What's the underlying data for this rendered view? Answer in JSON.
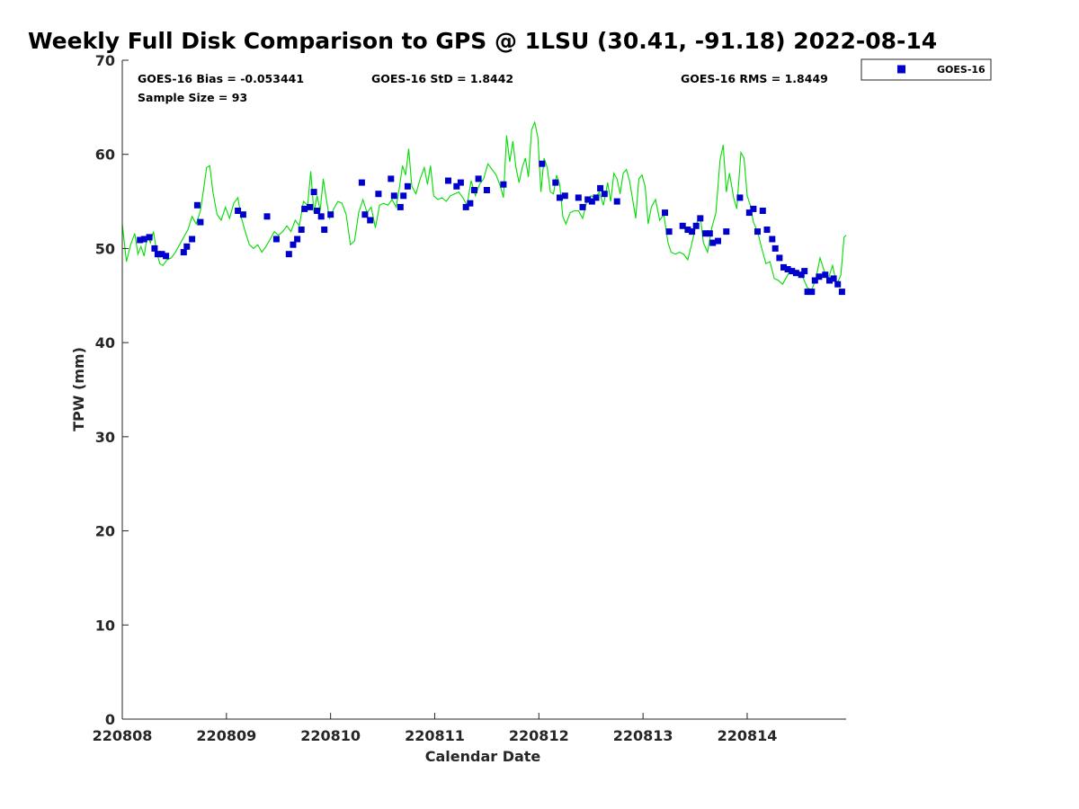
{
  "chart_data": {
    "type": "scatter",
    "title": "Weekly Full Disk Comparison to GPS @ 1LSU (30.41, -91.18) 2022-08-14",
    "xlabel": "Calendar Date",
    "ylabel": "TPW (mm)",
    "xlim": [
      0,
      6.95
    ],
    "ylim": [
      0,
      70
    ],
    "x_unit": "days since 220808",
    "x_ticks": [
      {
        "value": 0,
        "label": "220808"
      },
      {
        "value": 1,
        "label": "220809"
      },
      {
        "value": 2,
        "label": "220810"
      },
      {
        "value": 3,
        "label": "220811"
      },
      {
        "value": 4,
        "label": "220812"
      },
      {
        "value": 5,
        "label": "220813"
      },
      {
        "value": 6,
        "label": "220814"
      }
    ],
    "y_ticks": [
      0,
      10,
      20,
      30,
      40,
      50,
      60,
      70
    ],
    "grid": false,
    "legend": {
      "position": "outside-top-right",
      "entries": [
        "GOES-16"
      ]
    },
    "stats": {
      "bias": "GOES-16 Bias = -0.053441",
      "std": "GOES-16 StD = 1.8442",
      "rms": "GOES-16 RMS = 1.8449",
      "sample": "Sample Size = 93"
    },
    "series": [
      {
        "name": "GOES-16",
        "kind": "points",
        "color": "#0000cc",
        "marker": "square",
        "points": [
          [
            0.17,
            50.9
          ],
          [
            0.21,
            51.0
          ],
          [
            0.26,
            51.2
          ],
          [
            0.31,
            50.0
          ],
          [
            0.34,
            49.4
          ],
          [
            0.38,
            49.4
          ],
          [
            0.42,
            49.2
          ],
          [
            0.59,
            49.6
          ],
          [
            0.62,
            50.2
          ],
          [
            0.67,
            51.0
          ],
          [
            0.72,
            54.6
          ],
          [
            0.75,
            52.8
          ],
          [
            1.11,
            54.0
          ],
          [
            1.16,
            53.6
          ],
          [
            1.39,
            53.4
          ],
          [
            1.48,
            51.0
          ],
          [
            1.6,
            49.4
          ],
          [
            1.64,
            50.4
          ],
          [
            1.68,
            51.0
          ],
          [
            1.72,
            52.0
          ],
          [
            1.75,
            54.2
          ],
          [
            1.8,
            54.4
          ],
          [
            1.84,
            56.0
          ],
          [
            1.87,
            54.0
          ],
          [
            1.91,
            53.4
          ],
          [
            1.94,
            52.0
          ],
          [
            2.0,
            53.6
          ],
          [
            2.3,
            57.0
          ],
          [
            2.33,
            53.6
          ],
          [
            2.38,
            53.0
          ],
          [
            2.46,
            55.8
          ],
          [
            2.58,
            57.4
          ],
          [
            2.61,
            55.6
          ],
          [
            2.67,
            54.4
          ],
          [
            2.7,
            55.6
          ],
          [
            2.74,
            56.6
          ],
          [
            3.13,
            57.2
          ],
          [
            3.21,
            56.6
          ],
          [
            3.25,
            57.0
          ],
          [
            3.3,
            54.4
          ],
          [
            3.34,
            54.8
          ],
          [
            3.38,
            56.2
          ],
          [
            3.42,
            57.4
          ],
          [
            3.5,
            56.2
          ],
          [
            3.66,
            56.8
          ],
          [
            4.03,
            59.0
          ],
          [
            4.16,
            57.0
          ],
          [
            4.2,
            55.4
          ],
          [
            4.25,
            55.6
          ],
          [
            4.38,
            55.4
          ],
          [
            4.42,
            54.4
          ],
          [
            4.47,
            55.2
          ],
          [
            4.51,
            55.0
          ],
          [
            4.55,
            55.4
          ],
          [
            4.59,
            56.4
          ],
          [
            4.63,
            55.8
          ],
          [
            4.75,
            55.0
          ],
          [
            5.21,
            53.8
          ],
          [
            5.25,
            51.8
          ],
          [
            5.38,
            52.4
          ],
          [
            5.43,
            52.0
          ],
          [
            5.47,
            51.8
          ],
          [
            5.51,
            52.4
          ],
          [
            5.55,
            53.2
          ],
          [
            5.6,
            51.6
          ],
          [
            5.64,
            51.6
          ],
          [
            5.67,
            50.6
          ],
          [
            5.72,
            50.8
          ],
          [
            5.8,
            51.8
          ],
          [
            5.93,
            55.4
          ],
          [
            6.02,
            53.8
          ],
          [
            6.06,
            54.2
          ],
          [
            6.1,
            51.8
          ],
          [
            6.15,
            54.0
          ],
          [
            6.19,
            52.0
          ],
          [
            6.24,
            51.0
          ],
          [
            6.27,
            50.0
          ],
          [
            6.31,
            49.0
          ],
          [
            6.35,
            48.0
          ],
          [
            6.39,
            47.8
          ],
          [
            6.43,
            47.6
          ],
          [
            6.47,
            47.4
          ],
          [
            6.52,
            47.2
          ],
          [
            6.55,
            47.6
          ],
          [
            6.58,
            45.4
          ],
          [
            6.62,
            45.4
          ],
          [
            6.65,
            46.6
          ],
          [
            6.69,
            47.0
          ],
          [
            6.75,
            47.2
          ],
          [
            6.79,
            46.6
          ],
          [
            6.83,
            46.8
          ],
          [
            6.87,
            46.2
          ],
          [
            6.91,
            45.4
          ]
        ]
      },
      {
        "name": "GPS",
        "kind": "line",
        "color": "#00dd00",
        "points": [
          [
            0.0,
            52.6
          ],
          [
            0.04,
            48.6
          ],
          [
            0.08,
            50.4
          ],
          [
            0.12,
            51.6
          ],
          [
            0.15,
            49.4
          ],
          [
            0.18,
            50.2
          ],
          [
            0.21,
            49.2
          ],
          [
            0.24,
            51.4
          ],
          [
            0.27,
            50.6
          ],
          [
            0.3,
            51.8
          ],
          [
            0.33,
            49.6
          ],
          [
            0.36,
            48.4
          ],
          [
            0.39,
            48.2
          ],
          [
            0.43,
            48.8
          ],
          [
            0.47,
            49.0
          ],
          [
            0.51,
            49.6
          ],
          [
            0.55,
            50.4
          ],
          [
            0.59,
            51.2
          ],
          [
            0.63,
            52.0
          ],
          [
            0.67,
            53.4
          ],
          [
            0.71,
            52.6
          ],
          [
            0.75,
            54.0
          ],
          [
            0.78,
            56.2
          ],
          [
            0.81,
            58.6
          ],
          [
            0.84,
            58.8
          ],
          [
            0.87,
            56.0
          ],
          [
            0.91,
            53.6
          ],
          [
            0.95,
            53.0
          ],
          [
            0.99,
            54.4
          ],
          [
            1.03,
            53.2
          ],
          [
            1.07,
            54.8
          ],
          [
            1.11,
            55.4
          ],
          [
            1.14,
            53.4
          ],
          [
            1.18,
            51.8
          ],
          [
            1.22,
            50.4
          ],
          [
            1.26,
            50.0
          ],
          [
            1.3,
            50.4
          ],
          [
            1.34,
            49.6
          ],
          [
            1.38,
            50.2
          ],
          [
            1.42,
            51.0
          ],
          [
            1.46,
            51.8
          ],
          [
            1.5,
            51.4
          ],
          [
            1.54,
            51.8
          ],
          [
            1.58,
            52.4
          ],
          [
            1.62,
            51.8
          ],
          [
            1.66,
            53.0
          ],
          [
            1.7,
            52.4
          ],
          [
            1.74,
            55.0
          ],
          [
            1.78,
            54.6
          ],
          [
            1.81,
            58.2
          ],
          [
            1.84,
            53.8
          ],
          [
            1.87,
            55.6
          ],
          [
            1.9,
            54.0
          ],
          [
            1.93,
            57.4
          ],
          [
            1.96,
            55.2
          ],
          [
            1.99,
            53.2
          ],
          [
            2.03,
            54.2
          ],
          [
            2.07,
            55.0
          ],
          [
            2.11,
            54.8
          ],
          [
            2.15,
            53.6
          ],
          [
            2.19,
            50.4
          ],
          [
            2.23,
            50.8
          ],
          [
            2.27,
            53.8
          ],
          [
            2.31,
            55.2
          ],
          [
            2.35,
            53.8
          ],
          [
            2.39,
            54.4
          ],
          [
            2.43,
            52.2
          ],
          [
            2.47,
            54.6
          ],
          [
            2.51,
            54.8
          ],
          [
            2.55,
            54.6
          ],
          [
            2.59,
            55.2
          ],
          [
            2.63,
            54.4
          ],
          [
            2.66,
            56.4
          ],
          [
            2.69,
            58.8
          ],
          [
            2.72,
            57.8
          ],
          [
            2.75,
            60.6
          ],
          [
            2.78,
            56.6
          ],
          [
            2.82,
            55.8
          ],
          [
            2.86,
            57.4
          ],
          [
            2.9,
            58.6
          ],
          [
            2.93,
            56.8
          ],
          [
            2.96,
            58.8
          ],
          [
            2.99,
            55.6
          ],
          [
            3.03,
            55.2
          ],
          [
            3.07,
            55.4
          ],
          [
            3.11,
            55.0
          ],
          [
            3.15,
            55.6
          ],
          [
            3.19,
            55.8
          ],
          [
            3.23,
            56.0
          ],
          [
            3.27,
            55.4
          ],
          [
            3.31,
            54.6
          ],
          [
            3.35,
            57.2
          ],
          [
            3.39,
            55.6
          ],
          [
            3.43,
            56.8
          ],
          [
            3.47,
            57.4
          ],
          [
            3.51,
            59.0
          ],
          [
            3.55,
            58.4
          ],
          [
            3.59,
            57.8
          ],
          [
            3.63,
            56.6
          ],
          [
            3.66,
            55.4
          ],
          [
            3.69,
            62.0
          ],
          [
            3.72,
            59.2
          ],
          [
            3.75,
            61.4
          ],
          [
            3.78,
            58.6
          ],
          [
            3.81,
            57.0
          ],
          [
            3.84,
            58.6
          ],
          [
            3.87,
            59.6
          ],
          [
            3.9,
            57.6
          ],
          [
            3.93,
            62.6
          ],
          [
            3.96,
            63.4
          ],
          [
            3.99,
            61.8
          ],
          [
            4.02,
            56.0
          ],
          [
            4.05,
            59.6
          ],
          [
            4.08,
            58.6
          ],
          [
            4.11,
            56.0
          ],
          [
            4.14,
            55.8
          ],
          [
            4.17,
            57.8
          ],
          [
            4.2,
            56.8
          ],
          [
            4.23,
            53.4
          ],
          [
            4.26,
            52.6
          ],
          [
            4.3,
            53.8
          ],
          [
            4.34,
            54.0
          ],
          [
            4.38,
            54.0
          ],
          [
            4.42,
            53.2
          ],
          [
            4.46,
            55.0
          ],
          [
            4.5,
            55.6
          ],
          [
            4.54,
            55.4
          ],
          [
            4.58,
            56.0
          ],
          [
            4.62,
            54.6
          ],
          [
            4.66,
            57.0
          ],
          [
            4.69,
            55.0
          ],
          [
            4.72,
            58.0
          ],
          [
            4.75,
            57.4
          ],
          [
            4.78,
            55.8
          ],
          [
            4.81,
            58.0
          ],
          [
            4.84,
            58.4
          ],
          [
            4.87,
            57.2
          ],
          [
            4.9,
            55.2
          ],
          [
            4.93,
            53.2
          ],
          [
            4.96,
            57.4
          ],
          [
            4.99,
            57.8
          ],
          [
            5.02,
            56.6
          ],
          [
            5.05,
            52.6
          ],
          [
            5.08,
            54.4
          ],
          [
            5.12,
            55.2
          ],
          [
            5.16,
            53.0
          ],
          [
            5.2,
            53.6
          ],
          [
            5.24,
            50.6
          ],
          [
            5.27,
            49.6
          ],
          [
            5.31,
            49.4
          ],
          [
            5.35,
            49.6
          ],
          [
            5.39,
            49.4
          ],
          [
            5.43,
            48.8
          ],
          [
            5.47,
            50.6
          ],
          [
            5.51,
            52.6
          ],
          [
            5.55,
            53.4
          ],
          [
            5.58,
            50.6
          ],
          [
            5.62,
            49.6
          ],
          [
            5.66,
            52.2
          ],
          [
            5.7,
            53.8
          ],
          [
            5.74,
            59.4
          ],
          [
            5.77,
            61.0
          ],
          [
            5.8,
            56.0
          ],
          [
            5.83,
            58.0
          ],
          [
            5.87,
            55.4
          ],
          [
            5.9,
            54.2
          ],
          [
            5.94,
            60.2
          ],
          [
            5.97,
            59.6
          ],
          [
            6.0,
            55.6
          ],
          [
            6.03,
            54.6
          ],
          [
            6.06,
            52.8
          ],
          [
            6.1,
            51.8
          ],
          [
            6.14,
            50.0
          ],
          [
            6.18,
            48.4
          ],
          [
            6.22,
            48.6
          ],
          [
            6.26,
            46.8
          ],
          [
            6.3,
            46.6
          ],
          [
            6.34,
            46.2
          ],
          [
            6.38,
            47.0
          ],
          [
            6.42,
            47.8
          ],
          [
            6.46,
            47.4
          ],
          [
            6.5,
            47.4
          ],
          [
            6.54,
            46.8
          ],
          [
            6.58,
            45.8
          ],
          [
            6.62,
            45.6
          ],
          [
            6.66,
            46.8
          ],
          [
            6.7,
            49.0
          ],
          [
            6.74,
            47.6
          ],
          [
            6.78,
            46.8
          ],
          [
            6.82,
            48.2
          ],
          [
            6.86,
            46.2
          ],
          [
            6.9,
            47.2
          ],
          [
            6.93,
            51.2
          ],
          [
            6.95,
            51.4
          ]
        ]
      }
    ]
  }
}
